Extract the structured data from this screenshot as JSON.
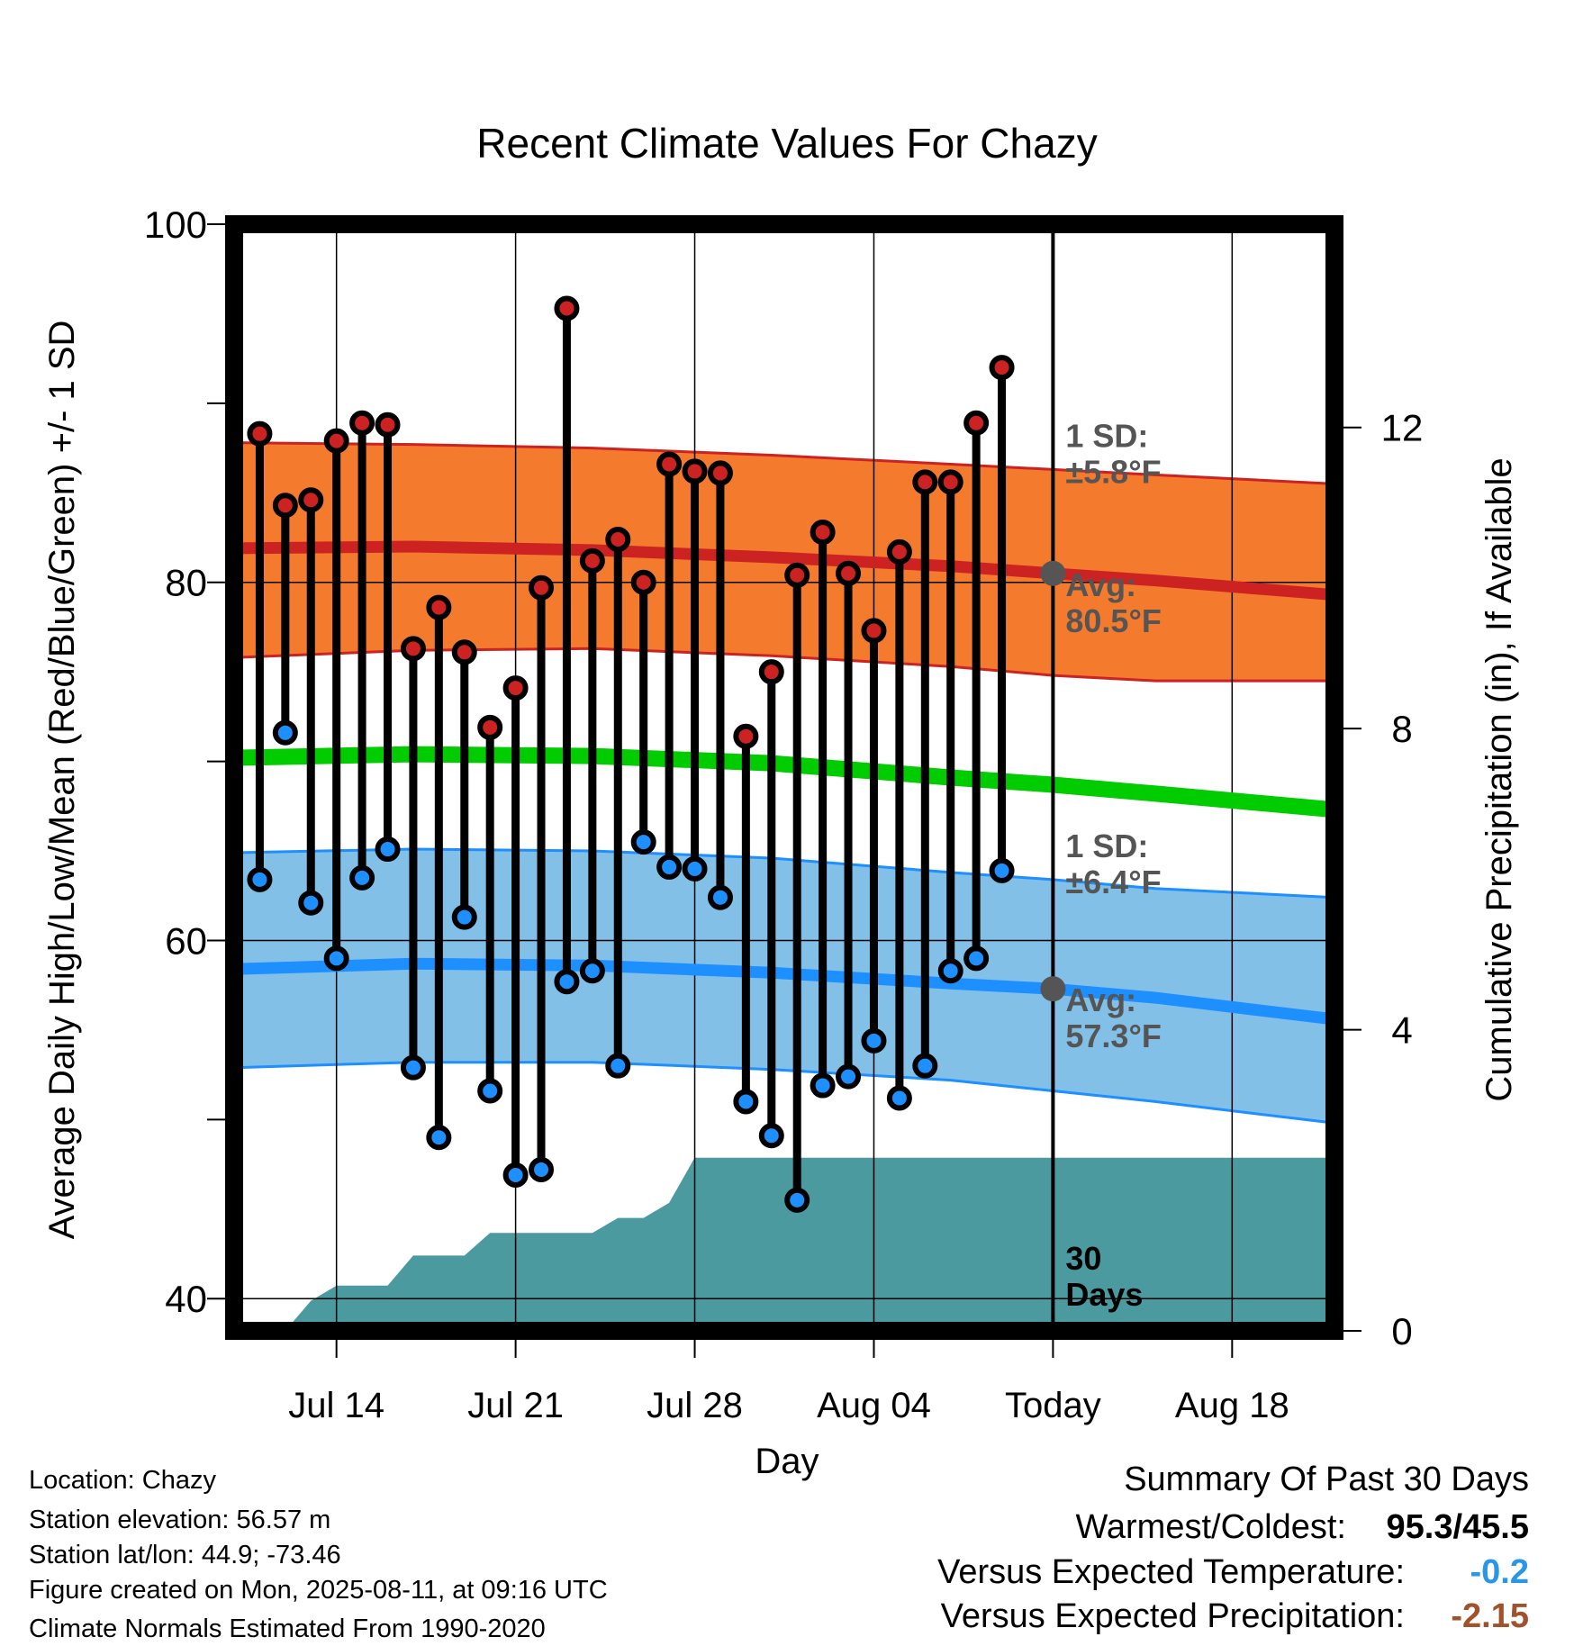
{
  "chart_data": {
    "type": "line",
    "title": "Recent Climate Values For Chazy",
    "xlabel": "Day",
    "ylabel": "Average Daily High/Low/Mean (Red/Blue/Green) +/- 1 SD",
    "y2label": "Cumulative Precipitation (in), If Available",
    "ylim": [
      38.2,
      100
    ],
    "y2lim": [
      0,
      14.7
    ],
    "yticks": [
      40,
      60,
      80,
      100
    ],
    "y2ticks": [
      0,
      4,
      8,
      12
    ],
    "xlim": [
      "2025-07-10",
      "2025-08-22"
    ],
    "xticks": [
      {
        "date": "2025-07-14",
        "label": "Jul 14"
      },
      {
        "date": "2025-07-21",
        "label": "Jul 21"
      },
      {
        "date": "2025-07-28",
        "label": "Jul 28"
      },
      {
        "date": "2025-08-04",
        "label": "Aug 04"
      },
      {
        "date": "2025-08-11",
        "label": "Today"
      },
      {
        "date": "2025-08-18",
        "label": "Aug 18"
      }
    ],
    "today": "2025-08-11",
    "grid": true,
    "colors": {
      "high_band": "#f47a2e",
      "high_line": "#cc2222",
      "high_point": "#cc2222",
      "low_band": "#82c0e8",
      "low_line": "#1e8fff",
      "low_point": "#1e8fff",
      "mean_line": "#00cc00",
      "precip": "#4a9aa0",
      "today_marker": "#555555",
      "label_text": "#555555"
    },
    "normals": {
      "x": [
        "2025-07-10",
        "2025-07-17",
        "2025-07-24",
        "2025-07-31",
        "2025-08-07",
        "2025-08-11",
        "2025-08-15",
        "2025-08-22"
      ],
      "high_avg": [
        81.9,
        82.0,
        81.8,
        81.4,
        80.9,
        80.5,
        80.1,
        79.3
      ],
      "high_upper": [
        87.8,
        87.7,
        87.5,
        87.1,
        86.6,
        86.3,
        86.0,
        85.5
      ],
      "high_lower": [
        75.8,
        76.2,
        76.3,
        75.9,
        75.3,
        74.8,
        74.5,
        74.5
      ],
      "mean": [
        70.2,
        70.4,
        70.3,
        69.9,
        69.1,
        68.7,
        68.2,
        67.3
      ],
      "low_avg": [
        58.4,
        58.7,
        58.6,
        58.2,
        57.6,
        57.3,
        56.8,
        55.6
      ],
      "low_upper": [
        64.9,
        65.1,
        65.0,
        64.6,
        63.8,
        63.4,
        62.9,
        62.4
      ],
      "low_lower": [
        52.9,
        53.2,
        53.2,
        52.8,
        52.2,
        51.6,
        51.0,
        49.8
      ]
    },
    "series": [
      {
        "x": [
          "2025-07-11",
          "2025-07-12",
          "2025-07-13",
          "2025-07-14",
          "2025-07-15",
          "2025-07-16",
          "2025-07-17",
          "2025-07-18",
          "2025-07-19",
          "2025-07-20",
          "2025-07-21",
          "2025-07-22",
          "2025-07-23",
          "2025-07-24",
          "2025-07-25",
          "2025-07-26",
          "2025-07-27",
          "2025-07-28",
          "2025-07-29",
          "2025-07-30",
          "2025-07-31",
          "2025-08-01",
          "2025-08-02",
          "2025-08-03",
          "2025-08-04",
          "2025-08-05",
          "2025-08-06",
          "2025-08-07",
          "2025-08-08",
          "2025-08-09",
          "2025-08-10"
        ],
        "values": [
          88.3,
          84.3,
          84.6,
          87.9,
          88.9,
          88.8,
          76.3,
          78.6,
          76.1,
          71.9,
          74.1,
          79.7,
          95.3,
          81.2,
          82.4,
          80.0,
          86.6,
          86.2,
          86.1,
          71.4,
          75.0,
          80.4,
          82.8,
          80.5,
          77.3,
          81.7,
          85.6,
          85.6,
          88.9,
          92.0,
          null
        ]
      },
      {
        "x": [
          "2025-07-11",
          "2025-07-12",
          "2025-07-13",
          "2025-07-14",
          "2025-07-15",
          "2025-07-16",
          "2025-07-17",
          "2025-07-18",
          "2025-07-19",
          "2025-07-20",
          "2025-07-21",
          "2025-07-22",
          "2025-07-23",
          "2025-07-24",
          "2025-07-25",
          "2025-07-26",
          "2025-07-27",
          "2025-07-28",
          "2025-07-29",
          "2025-07-30",
          "2025-07-31",
          "2025-08-01",
          "2025-08-02",
          "2025-08-03",
          "2025-08-04",
          "2025-08-05",
          "2025-08-06",
          "2025-08-07",
          "2025-08-08",
          "2025-08-09",
          "2025-08-10"
        ],
        "values": [
          63.4,
          71.6,
          62.1,
          59.0,
          63.5,
          65.1,
          52.9,
          49.0,
          61.3,
          51.6,
          46.9,
          47.2,
          57.7,
          58.3,
          53.0,
          65.5,
          64.1,
          64.0,
          62.4,
          51.0,
          49.1,
          45.5,
          51.9,
          52.4,
          54.4,
          51.2,
          53.0,
          58.3,
          59.0,
          63.9,
          null
        ]
      }
    ],
    "precip": {
      "x": [
        "2025-07-10",
        "2025-07-11",
        "2025-07-12",
        "2025-07-13",
        "2025-07-14",
        "2025-07-15",
        "2025-07-16",
        "2025-07-17",
        "2025-07-18",
        "2025-07-19",
        "2025-07-20",
        "2025-07-21",
        "2025-07-22",
        "2025-07-23",
        "2025-07-24",
        "2025-07-25",
        "2025-07-26",
        "2025-07-27",
        "2025-07-28",
        "2025-08-22"
      ],
      "values": [
        0,
        0,
        0,
        0.4,
        0.6,
        0.6,
        0.6,
        1.0,
        1.0,
        1.0,
        1.3,
        1.3,
        1.3,
        1.3,
        1.3,
        1.5,
        1.5,
        1.7,
        2.3,
        2.3
      ]
    },
    "annotations": [
      {
        "text": "1 SD:",
        "ref": "high_upper"
      },
      {
        "text": "±5.8°F",
        "ref": "high_upper"
      },
      {
        "text": "Avg:",
        "ref": "high_avg"
      },
      {
        "text": "80.5°F",
        "ref": "high_avg"
      },
      {
        "text": "1 SD:",
        "ref": "low_upper"
      },
      {
        "text": "±6.4°F",
        "ref": "low_upper"
      },
      {
        "text": "Avg:",
        "ref": "low_avg"
      },
      {
        "text": "57.3°F",
        "ref": "low_avg"
      },
      {
        "text": "30",
        "ref": "precip"
      },
      {
        "text": "Days",
        "ref": "precip"
      }
    ]
  },
  "footer": {
    "location": "Location: Chazy",
    "elevation": "Station elevation: 56.57 m",
    "latlon": "Station lat/lon: 44.9; -73.46",
    "created": "Figure created on Mon, 2025-08-11, at 09:16 UTC",
    "normals": "Climate Normals Estimated From 1990-2020"
  },
  "summary": {
    "title": "Summary Of Past 30 Days",
    "warmest_label": "Warmest/Coldest:",
    "warmest_value": "95.3/45.5",
    "temp_label": "Versus Expected Temperature:",
    "temp_value": "-0.2",
    "temp_color": "#2a96e6",
    "precip_label": "Versus Expected Precipitation:",
    "precip_value": "-2.15",
    "precip_color": "#a0522d"
  }
}
